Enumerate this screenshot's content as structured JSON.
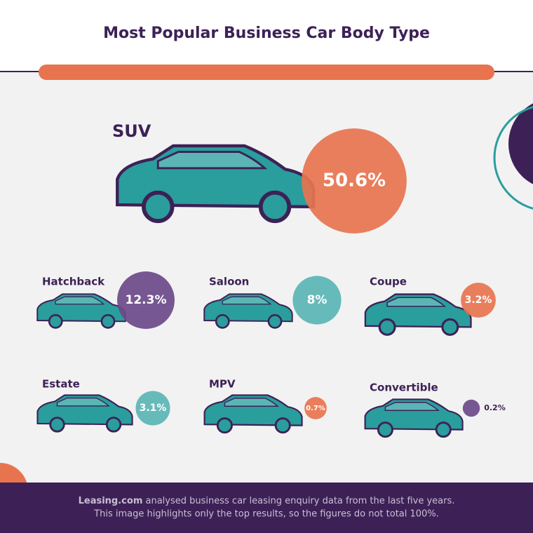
{
  "chart_data": {
    "type": "bubble",
    "title": "Most Popular Business Car Body Type",
    "categories": [
      "SUV",
      "Hatchback",
      "Saloon",
      "Coupe",
      "Estate",
      "MPV",
      "Convertible"
    ],
    "values": [
      50.6,
      12.3,
      8,
      3.2,
      3.1,
      0.7,
      0.2
    ],
    "value_labels": [
      "50.6%",
      "12.3%",
      "8%",
      "3.2%",
      "3.1%",
      "0.7%",
      "0.2%"
    ],
    "colors": [
      "#e8744f",
      "#6b4a8a",
      "#5bb5b5",
      "#e8744f",
      "#5bb5b5",
      "#e8744f",
      "#6b4a8a"
    ],
    "source": "Leasing.com",
    "notes": [
      "analysed business car leasing enquiry data from the last five years.",
      "This image highlights only the top results, so the figures do not total 100%."
    ]
  }
}
